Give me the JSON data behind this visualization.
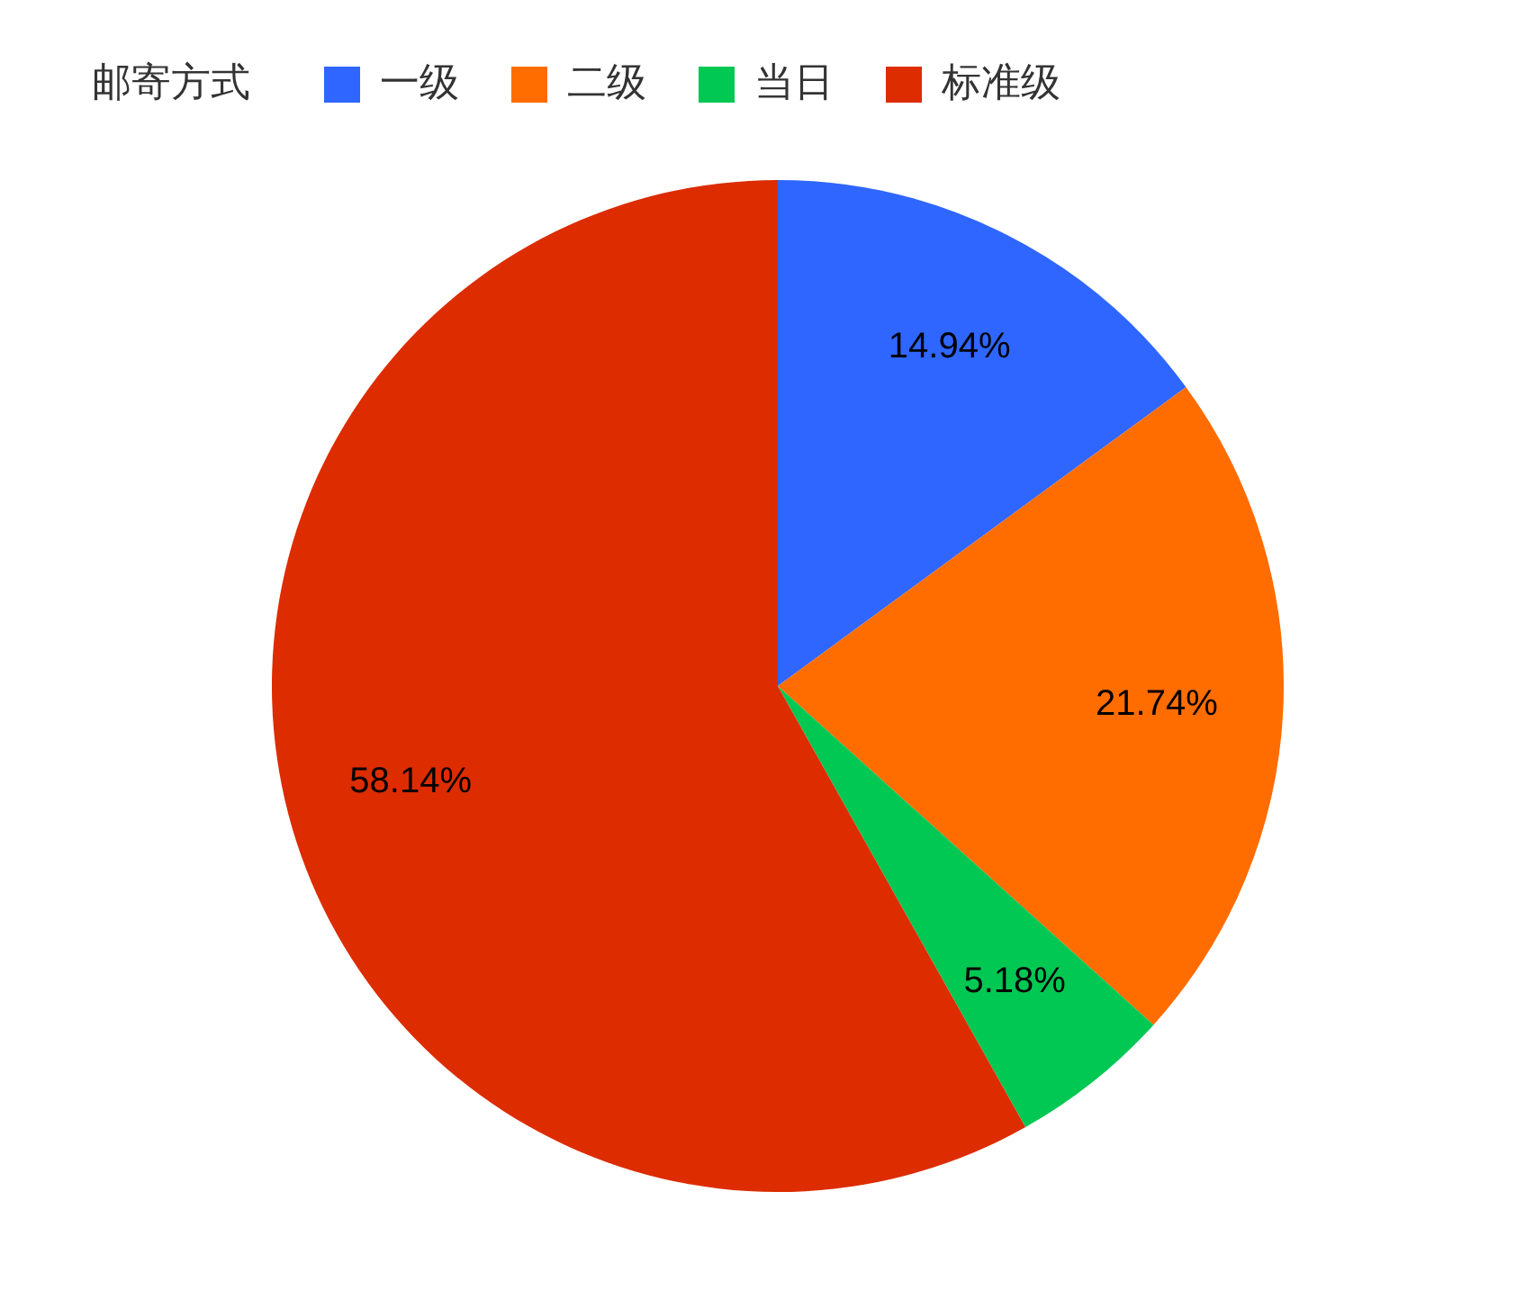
{
  "chart_data": {
    "type": "pie",
    "legend_title": "邮寄方式",
    "legend": "top left",
    "categories": [
      "一级",
      "二级",
      "当日",
      "标准级"
    ],
    "values": [
      14.94,
      21.74,
      5.18,
      58.14
    ],
    "colors": [
      "#2f66ff",
      "#ff6d00",
      "#00c853",
      "#dd2c00"
    ],
    "value_labels": [
      "14.94%",
      "21.74%",
      "5.18%",
      "58.14%"
    ]
  }
}
